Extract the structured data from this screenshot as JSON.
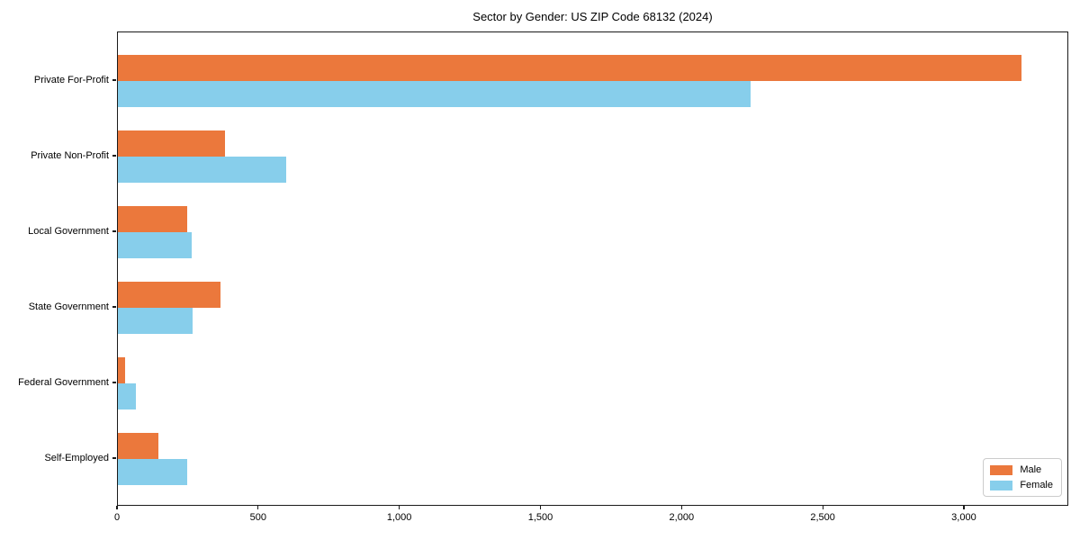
{
  "title": "Sector by Gender: US ZIP Code 68132 (2024)",
  "chart_data": {
    "type": "bar",
    "orientation": "horizontal",
    "title": "Sector by Gender: US ZIP Code 68132 (2024)",
    "categories": [
      "Private For-Profit",
      "Private Non-Profit",
      "Local Government",
      "State Government",
      "Federal Government",
      "Self-Employed"
    ],
    "series": [
      {
        "name": "Male",
        "color": "#eb783c",
        "values": [
          3200,
          380,
          247,
          364,
          26,
          143
        ]
      },
      {
        "name": "Female",
        "color": "#87ceeb",
        "values": [
          2240,
          595,
          263,
          266,
          64,
          245
        ]
      }
    ],
    "xlabel": "",
    "ylabel": "",
    "xlim": [
      0,
      3370
    ],
    "x_ticks": [
      0,
      500,
      1000,
      1500,
      2000,
      2500,
      3000
    ],
    "x_tick_labels": [
      "0",
      "500",
      "1,000",
      "1,500",
      "2,000",
      "2,500",
      "3,000"
    ],
    "grid": false,
    "legend_position": "lower right",
    "legend_items": [
      {
        "label": "Male",
        "color": "#eb783c"
      },
      {
        "label": "Female",
        "color": "#87ceeb"
      }
    ]
  }
}
